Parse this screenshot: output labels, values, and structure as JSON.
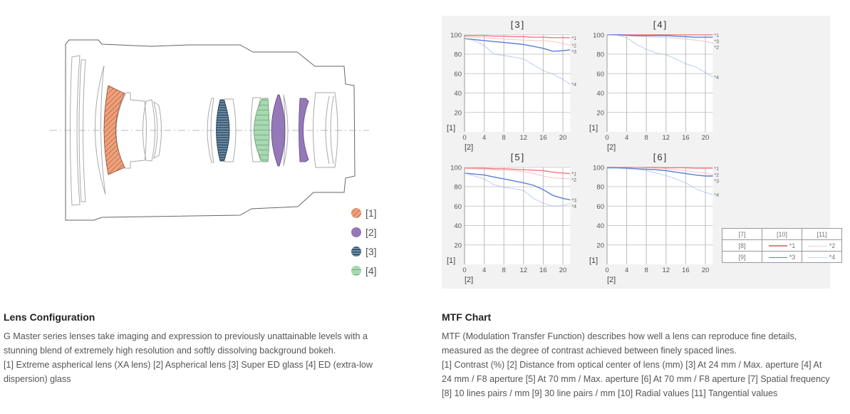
{
  "lens_diagram": {
    "legend": [
      {
        "label": "[1]",
        "color": "#f0a07a",
        "pattern": "diagonal-hatch"
      },
      {
        "label": "[2]",
        "color": "#9578b8",
        "pattern": "solid"
      },
      {
        "label": "[3]",
        "color": "#6a8ca8",
        "pattern": "horizontal-hatch"
      },
      {
        "label": "[4]",
        "color": "#a8d8b0",
        "pattern": "horizontal-hatch"
      }
    ]
  },
  "lens_text": {
    "title": "Lens Configuration",
    "paragraph": "G Master series lenses take imaging and expression to previously unattainable levels with a stunning blend of extremely high resolution and softly dissolving background bokeh.",
    "legend_line": "[1] Extreme aspherical lens (XA lens)  [2] Aspherical lens  [3] Super ED glass  [4] ED (extra-low dispersion) glass"
  },
  "mtf_text": {
    "title": "MTF Chart",
    "paragraph": "MTF (Modulation Transfer Function) describes how well a lens can reproduce fine details, measured as the degree of contrast achieved between finely spaced lines.",
    "legend_line": "[1] Contrast (%)  [2] Distance from optical center of lens (mm)  [3] At 24 mm / Max. aperture  [4] At 24 mm / F8 aperture  [5] At 70 mm / Max. aperture  [6] At 70 mm / F8 aperture  [7] Spatial frequency  [8] 10 lines pairs / mm  [9] 30 line pairs / mm  [10] Radial values  [11] Tangential values"
  },
  "mtf_legend": {
    "header": [
      "[7]",
      "[10]",
      "[11]"
    ],
    "rows": [
      {
        "label": "[8]",
        "radial": "*1",
        "tangential": "*2"
      },
      {
        "label": "[9]",
        "radial": "*3",
        "tangential": "*4"
      }
    ]
  },
  "chart_data": [
    {
      "type": "line",
      "title": "[3]",
      "ylabel": "[1]",
      "xlabel": "[2]",
      "xlim": [
        0,
        21.5
      ],
      "ylim": [
        0,
        100
      ],
      "xticks": [
        0,
        4,
        8,
        12,
        16,
        20
      ],
      "yticks": [
        20,
        40,
        60,
        80,
        100
      ],
      "grid": true,
      "x": [
        0,
        2,
        4,
        6,
        8,
        10,
        12,
        14,
        16,
        18,
        20,
        21.5
      ],
      "series": [
        {
          "name": "*1",
          "color": "#f07a80",
          "style": "solid",
          "values": [
            99,
            99,
            99,
            98.5,
            98.5,
            98,
            98,
            97.5,
            97.5,
            97,
            97,
            97
          ]
        },
        {
          "name": "*2",
          "color": "#f5a0a5",
          "style": "dotted",
          "values": [
            98,
            97.5,
            97,
            96,
            95.5,
            95,
            94.5,
            94,
            94,
            93,
            91,
            89
          ]
        },
        {
          "name": "*3",
          "color": "#5a7fd6",
          "style": "solid",
          "values": [
            96,
            95,
            94,
            93,
            92,
            91,
            90,
            88,
            86,
            83,
            83.5,
            84.5
          ]
        },
        {
          "name": "*4",
          "color": "#9ab4ea",
          "style": "dotted",
          "values": [
            96,
            94,
            89,
            80,
            78.5,
            77,
            75,
            69,
            63,
            59.5,
            54,
            49
          ]
        }
      ]
    },
    {
      "type": "line",
      "title": "[4]",
      "ylabel": "[1]",
      "xlabel": "[2]",
      "xlim": [
        0,
        21.5
      ],
      "ylim": [
        0,
        100
      ],
      "xticks": [
        0,
        4,
        8,
        12,
        16,
        20
      ],
      "yticks": [
        20,
        40,
        60,
        80,
        100
      ],
      "grid": true,
      "x": [
        0,
        2,
        4,
        6,
        8,
        10,
        12,
        14,
        16,
        18,
        20,
        21.5
      ],
      "series": [
        {
          "name": "*1",
          "color": "#f07a80",
          "style": "solid",
          "values": [
            100,
            100,
            100,
            100,
            100,
            100,
            100,
            100,
            100,
            100,
            100,
            100
          ]
        },
        {
          "name": "*2",
          "color": "#f5a0a5",
          "style": "dotted",
          "values": [
            100,
            99.5,
            99,
            98.5,
            98,
            97.5,
            97,
            96.5,
            95.5,
            94.5,
            93,
            91.5
          ]
        },
        {
          "name": "*3",
          "color": "#5a7fd6",
          "style": "solid",
          "values": [
            100,
            100,
            99.5,
            99,
            99,
            99,
            99,
            98.5,
            98,
            97.5,
            97.5,
            97.5
          ]
        },
        {
          "name": "*4",
          "color": "#9ab4ea",
          "style": "dotted",
          "values": [
            100,
            99.5,
            97,
            90,
            85,
            81,
            79.5,
            75,
            70,
            67,
            61,
            56.5
          ]
        }
      ]
    },
    {
      "type": "line",
      "title": "[5]",
      "ylabel": "[1]",
      "xlabel": "[2]",
      "xlim": [
        0,
        21.5
      ],
      "ylim": [
        0,
        100
      ],
      "xticks": [
        0,
        4,
        8,
        12,
        16,
        20
      ],
      "yticks": [
        20,
        40,
        60,
        80,
        100
      ],
      "grid": true,
      "x": [
        0,
        2,
        4,
        6,
        8,
        10,
        12,
        14,
        16,
        18,
        20,
        21.5
      ],
      "series": [
        {
          "name": "*1",
          "color": "#f07a80",
          "style": "solid",
          "values": [
            99,
            99,
            99,
            98.5,
            98.5,
            98,
            97.5,
            97,
            96.5,
            95,
            94,
            93.5
          ]
        },
        {
          "name": "*2",
          "color": "#f5a0a5",
          "style": "dotted",
          "values": [
            99,
            98.5,
            98,
            97.5,
            97,
            96.5,
            95.5,
            93.5,
            91,
            89,
            88.5,
            88
          ]
        },
        {
          "name": "*3",
          "color": "#5a7fd6",
          "style": "solid",
          "values": [
            94,
            93,
            92,
            90,
            88,
            86,
            84,
            81.5,
            77,
            71,
            68,
            66.5
          ]
        },
        {
          "name": "*4",
          "color": "#9ab4ea",
          "style": "dotted",
          "values": [
            94,
            91,
            88,
            82,
            79.5,
            78,
            76,
            68,
            63,
            60,
            60.5,
            63
          ]
        }
      ]
    },
    {
      "type": "line",
      "title": "[6]",
      "ylabel": "[1]",
      "xlabel": "[2]",
      "xlim": [
        0,
        21.5
      ],
      "ylim": [
        0,
        100
      ],
      "xticks": [
        0,
        4,
        8,
        12,
        16,
        20
      ],
      "yticks": [
        20,
        40,
        60,
        80,
        100
      ],
      "grid": true,
      "x": [
        0,
        2,
        4,
        6,
        8,
        10,
        12,
        14,
        16,
        18,
        20,
        21.5
      ],
      "series": [
        {
          "name": "*1",
          "color": "#f07a80",
          "style": "solid",
          "values": [
            100,
            100,
            100,
            100,
            100,
            100,
            99.5,
            99.5,
            99.5,
            99,
            99,
            99
          ]
        },
        {
          "name": "*2",
          "color": "#f5a0a5",
          "style": "dotted",
          "values": [
            100,
            100,
            100,
            100,
            99.5,
            99,
            98.5,
            97.5,
            96.5,
            95,
            94,
            92.5
          ]
        },
        {
          "name": "*3",
          "color": "#5a7fd6",
          "style": "solid",
          "values": [
            99.5,
            99.5,
            99,
            98.5,
            98,
            97.5,
            96.5,
            95,
            93.5,
            92,
            91,
            91
          ]
        },
        {
          "name": "*4",
          "color": "#9ab4ea",
          "style": "dotted",
          "values": [
            99,
            99,
            98.5,
            98,
            96.5,
            94,
            91.5,
            88,
            84,
            78,
            74,
            72
          ]
        }
      ]
    }
  ]
}
